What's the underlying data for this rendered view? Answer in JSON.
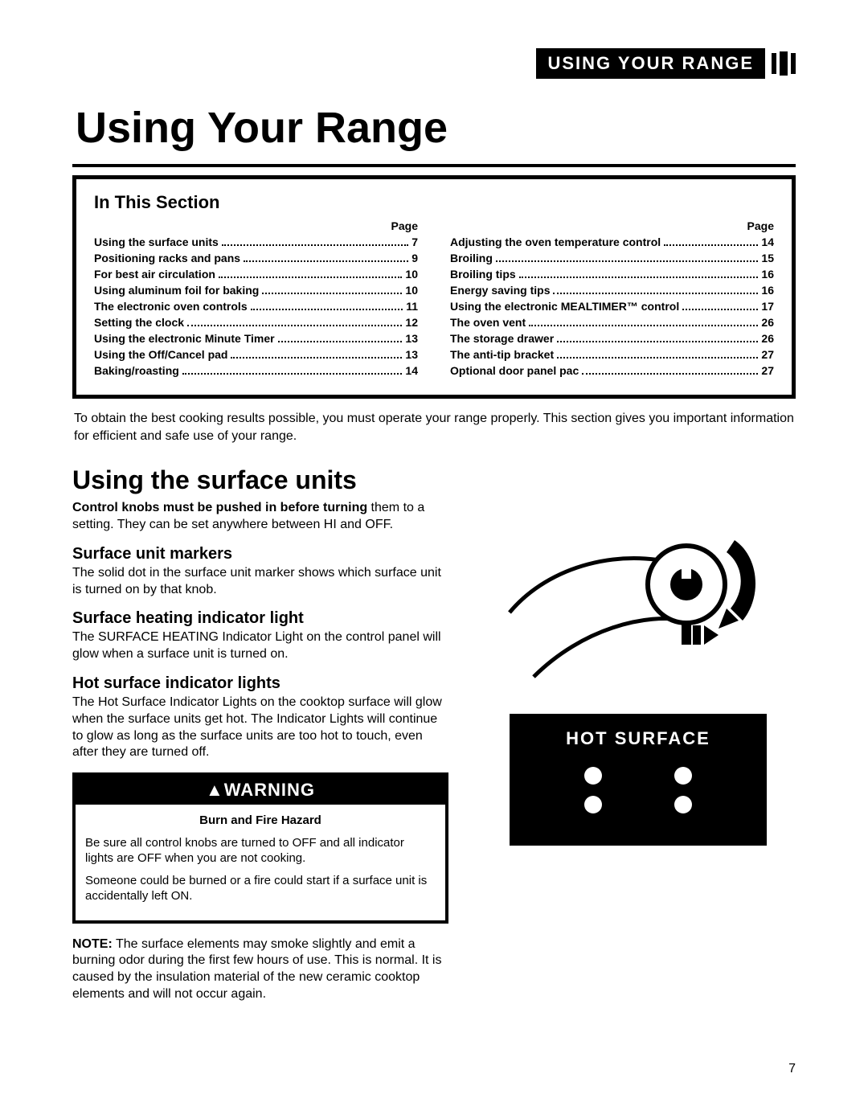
{
  "header_label": "USING YOUR RANGE",
  "title": "Using Your Range",
  "toc": {
    "heading": "In This Section",
    "page_label": "Page",
    "left": [
      {
        "label": "Using the surface units",
        "page": "7"
      },
      {
        "label": "Positioning racks and pans",
        "page": "9"
      },
      {
        "label": "For best air circulation",
        "page": "10"
      },
      {
        "label": "Using aluminum foil for baking",
        "page": "10"
      },
      {
        "label": "The electronic oven controls",
        "page": "11"
      },
      {
        "label": "Setting the clock",
        "page": "12"
      },
      {
        "label": "Using the electronic Minute Timer",
        "page": "13"
      },
      {
        "label": "Using the Off/Cancel pad",
        "page": "13"
      },
      {
        "label": "Baking/roasting",
        "page": "14"
      }
    ],
    "right": [
      {
        "label": "Adjusting the oven temperature control",
        "page": "14"
      },
      {
        "label": "Broiling",
        "page": "15"
      },
      {
        "label": "Broiling tips",
        "page": "16"
      },
      {
        "label": "Energy saving tips",
        "page": "16"
      },
      {
        "label": "Using the electronic MEALTIMER™ control",
        "page": "17"
      },
      {
        "label": "The oven vent",
        "page": "26"
      },
      {
        "label": "The storage drawer",
        "page": "26"
      },
      {
        "label": "The anti-tip bracket",
        "page": "27"
      },
      {
        "label": "Optional door panel pac",
        "page": "27"
      }
    ]
  },
  "intro": "To obtain the best cooking results possible, you must operate your range properly. This section gives you important information for efficient and safe use of your range.",
  "section_title": "Using the surface units",
  "knobs": {
    "bold": "Control knobs must be pushed in before turning",
    "rest": " them to a setting. They can be set anywhere between HI and OFF."
  },
  "markers": {
    "heading": "Surface unit markers",
    "text": "The solid dot in the surface unit marker shows which surface unit is turned on by that knob."
  },
  "heating": {
    "heading": "Surface heating indicator light",
    "text": "The SURFACE HEATING Indicator Light on the control panel will glow when a surface unit is turned on."
  },
  "hot": {
    "heading": "Hot surface indicator lights",
    "text": "The Hot Surface Indicator Lights on the cooktop surface will glow when the surface units get hot. The Indicator Lights will continue to glow as long as the surface units are too hot to touch, even after they are turned off."
  },
  "warning": {
    "head": "WARNING",
    "sub": "Burn and Fire Hazard",
    "p1": "Be sure all control knobs are turned to OFF and all indicator lights are OFF when you are not cooking.",
    "p2": "Someone could be burned or a fire could start if a surface unit is accidentally left ON."
  },
  "note_label": "NOTE:",
  "note_text": " The surface elements may smoke slightly and emit a burning odor during the first few hours of use. This is normal. It is caused by the insulation material of the new ceramic cooktop elements and will not occur again.",
  "hot_surface_label": "HOT SURFACE",
  "page_number": "7"
}
